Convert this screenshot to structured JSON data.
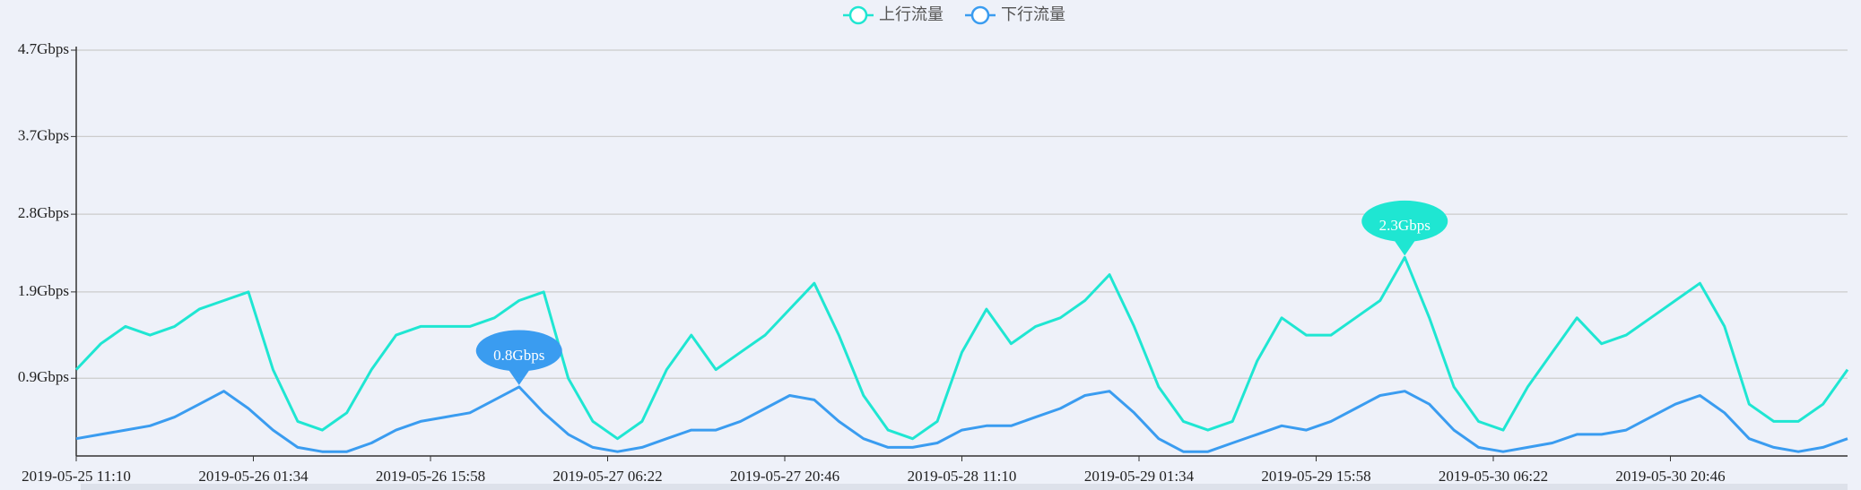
{
  "chart_data": {
    "type": "line",
    "x": [
      "2019-05-25 11:10",
      "2019-05-25 13:10",
      "2019-05-25 15:10",
      "2019-05-25 17:10",
      "2019-05-25 19:10",
      "2019-05-25 21:10",
      "2019-05-25 23:10",
      "2019-05-26 01:10",
      "2019-05-26 03:10",
      "2019-05-26 05:10",
      "2019-05-26 07:10",
      "2019-05-26 09:10",
      "2019-05-26 11:10",
      "2019-05-26 13:10",
      "2019-05-26 15:10",
      "2019-05-26 17:10",
      "2019-05-26 19:10",
      "2019-05-26 21:10",
      "2019-05-26 23:10",
      "2019-05-27 01:10",
      "2019-05-27 03:10",
      "2019-05-27 05:10",
      "2019-05-27 07:10",
      "2019-05-27 09:10",
      "2019-05-27 11:10",
      "2019-05-27 13:10",
      "2019-05-27 15:10",
      "2019-05-27 17:10",
      "2019-05-27 19:10",
      "2019-05-27 21:10",
      "2019-05-27 23:10",
      "2019-05-28 01:10",
      "2019-05-28 03:10",
      "2019-05-28 05:10",
      "2019-05-28 07:10",
      "2019-05-28 09:10",
      "2019-05-28 11:10",
      "2019-05-28 13:10",
      "2019-05-28 15:10",
      "2019-05-28 17:10",
      "2019-05-28 19:10",
      "2019-05-28 21:10",
      "2019-05-28 23:10",
      "2019-05-29 01:10",
      "2019-05-29 03:10",
      "2019-05-29 05:10",
      "2019-05-29 07:10",
      "2019-05-29 09:10",
      "2019-05-29 11:10",
      "2019-05-29 13:10",
      "2019-05-29 15:10",
      "2019-05-29 17:10",
      "2019-05-29 19:10",
      "2019-05-29 21:10",
      "2019-05-29 23:10",
      "2019-05-30 01:10",
      "2019-05-30 03:10",
      "2019-05-30 05:10",
      "2019-05-30 07:10",
      "2019-05-30 09:10",
      "2019-05-30 11:10",
      "2019-05-30 13:10",
      "2019-05-30 15:10",
      "2019-05-30 17:10",
      "2019-05-30 19:10",
      "2019-05-30 21:10",
      "2019-05-30 23:10",
      "2019-05-31 01:10",
      "2019-05-31 03:10",
      "2019-05-31 05:10",
      "2019-05-31 07:10",
      "2019-05-31 09:10",
      "2019-05-31 11:10"
    ],
    "series": [
      {
        "name": "上行流量",
        "color": "#1fe6d2",
        "values": [
          1.0,
          1.3,
          1.5,
          1.4,
          1.5,
          1.7,
          1.8,
          1.9,
          1.0,
          0.4,
          0.3,
          0.5,
          1.0,
          1.4,
          1.5,
          1.5,
          1.5,
          1.6,
          1.8,
          1.9,
          0.9,
          0.4,
          0.2,
          0.4,
          1.0,
          1.4,
          1.0,
          1.2,
          1.4,
          1.7,
          2.0,
          1.4,
          0.7,
          0.3,
          0.2,
          0.4,
          1.2,
          1.7,
          1.3,
          1.5,
          1.6,
          1.8,
          2.1,
          1.5,
          0.8,
          0.4,
          0.3,
          0.4,
          1.1,
          1.6,
          1.4,
          1.4,
          1.6,
          1.8,
          2.3,
          1.6,
          0.8,
          0.4,
          0.3,
          0.8,
          1.2,
          1.6,
          1.3,
          1.4,
          1.6,
          1.8,
          2.0,
          1.5,
          0.6,
          0.4,
          0.4,
          0.6,
          1.0
        ],
        "peak": {
          "x": "2019-05-29 23:10",
          "value": 2.3,
          "label": "2.3Gbps"
        }
      },
      {
        "name": "下行流量",
        "color": "#3a9cf0",
        "values": [
          0.2,
          0.25,
          0.3,
          0.35,
          0.45,
          0.6,
          0.75,
          0.55,
          0.3,
          0.1,
          0.05,
          0.05,
          0.15,
          0.3,
          0.4,
          0.45,
          0.5,
          0.65,
          0.8,
          0.5,
          0.25,
          0.1,
          0.05,
          0.1,
          0.2,
          0.3,
          0.3,
          0.4,
          0.55,
          0.7,
          0.65,
          0.4,
          0.2,
          0.1,
          0.1,
          0.15,
          0.3,
          0.35,
          0.35,
          0.45,
          0.55,
          0.7,
          0.75,
          0.5,
          0.2,
          0.05,
          0.05,
          0.15,
          0.25,
          0.35,
          0.3,
          0.4,
          0.55,
          0.7,
          0.75,
          0.6,
          0.3,
          0.1,
          0.05,
          0.1,
          0.15,
          0.25,
          0.25,
          0.3,
          0.45,
          0.6,
          0.7,
          0.5,
          0.2,
          0.1,
          0.05,
          0.1,
          0.2
        ],
        "peak": {
          "x": "2019-05-26 23:10",
          "value": 0.8,
          "label": "0.8Gbps"
        }
      }
    ],
    "xlim": [
      "2019-05-25 11:10",
      "2019-05-31 11:10"
    ],
    "xticks": [
      "2019-05-25 11:10",
      "2019-05-26 01:34",
      "2019-05-26 15:58",
      "2019-05-27 06:22",
      "2019-05-27 20:46",
      "2019-05-28 11:10",
      "2019-05-29 01:34",
      "2019-05-29 15:58",
      "2019-05-30 06:22",
      "2019-05-30 20:46"
    ],
    "ylim": [
      0,
      4.7
    ],
    "yticks": [
      {
        "value": 0.9,
        "label": "0.9Gbps"
      },
      {
        "value": 1.9,
        "label": "1.9Gbps"
      },
      {
        "value": 2.8,
        "label": "2.8Gbps"
      },
      {
        "value": 3.7,
        "label": "3.7Gbps"
      },
      {
        "value": 4.7,
        "label": "4.7Gbps"
      }
    ],
    "grid": true
  }
}
